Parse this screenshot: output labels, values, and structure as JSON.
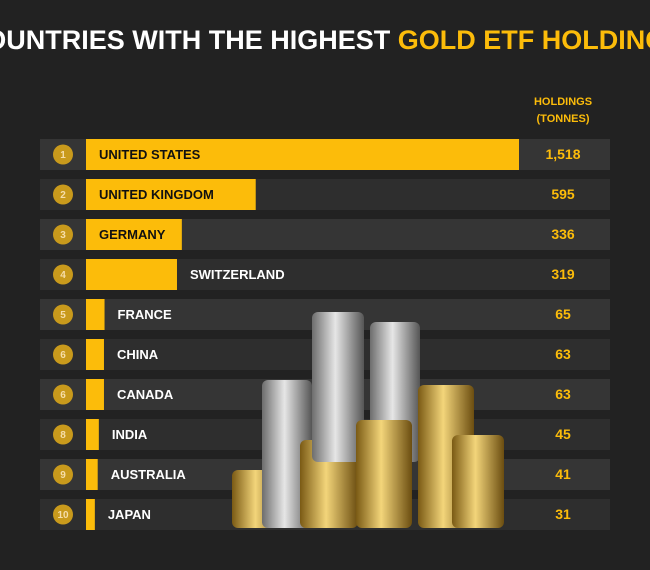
{
  "chart_data": {
    "type": "bar",
    "title": "COUNTRIES WITH THE HIGHEST",
    "title_highlight": "GOLD ETF HOLDINGS",
    "value_header": [
      "HOLDINGS",
      "(TONNES)"
    ],
    "ranks": [
      1,
      2,
      3,
      4,
      5,
      6,
      6,
      8,
      9,
      10
    ],
    "categories": [
      "UNITED STATES",
      "UNITED KINGDOM",
      "GERMANY",
      "SWITZERLAND",
      "FRANCE",
      "CHINA",
      "CANADA",
      "INDIA",
      "AUSTRALIA",
      "JAPAN"
    ],
    "values": [
      1518,
      595,
      336,
      319,
      65,
      63,
      63,
      45,
      41,
      31
    ],
    "value_labels": [
      "1,518",
      "595",
      "336",
      "319",
      "65",
      "63",
      "63",
      "45",
      "41",
      "31"
    ],
    "color": "#fcbc0a"
  }
}
